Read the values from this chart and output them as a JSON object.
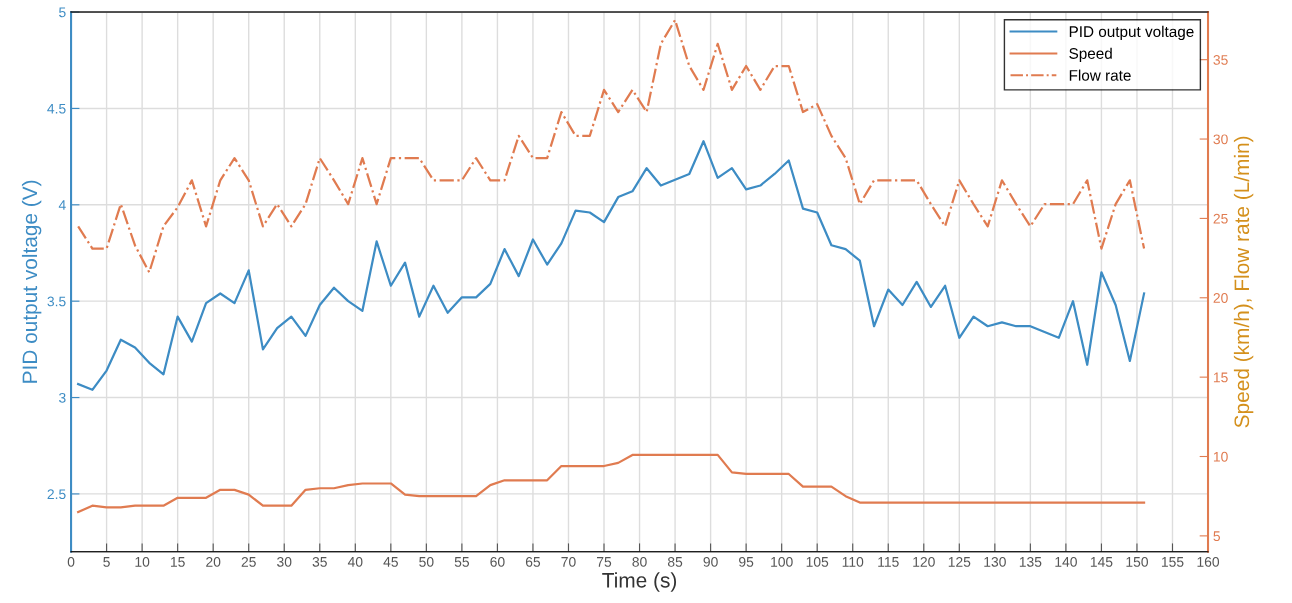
{
  "chart_data": {
    "type": "line",
    "xlabel": "Time (s)",
    "ylabel": "PID output voltage (V)",
    "y2label": "Speed (km/h), Flow rate (L/min)",
    "x": [
      1,
      3,
      5,
      7,
      9,
      11,
      13,
      15,
      17,
      19,
      21,
      23,
      25,
      27,
      29,
      31,
      33,
      35,
      37,
      39,
      41,
      43,
      45,
      47,
      49,
      51,
      53,
      55,
      57,
      59,
      61,
      63,
      65,
      67,
      69,
      71,
      73,
      75,
      77,
      79,
      81,
      83,
      85,
      87,
      89,
      91,
      93,
      95,
      97,
      99,
      101,
      103,
      105,
      107,
      109,
      111,
      113,
      115,
      117,
      119,
      121,
      123,
      125,
      127,
      129,
      131,
      133,
      135,
      137,
      139,
      141,
      143,
      145,
      147,
      149,
      151
    ],
    "series": [
      {
        "name": "PID output voltage",
        "color": "#3d8cc4",
        "line_style": "solid",
        "values": [
          3.07,
          3.04,
          3.14,
          3.3,
          3.26,
          3.18,
          3.12,
          3.42,
          3.29,
          3.49,
          3.54,
          3.49,
          3.66,
          3.25,
          3.36,
          3.42,
          3.32,
          3.48,
          3.57,
          3.5,
          3.45,
          3.81,
          3.58,
          3.7,
          3.42,
          3.58,
          3.44,
          3.52,
          3.52,
          3.59,
          3.77,
          3.63,
          3.82,
          3.69,
          3.8,
          3.97,
          3.96,
          3.91,
          4.04,
          4.07,
          4.19,
          4.1,
          4.13,
          4.16,
          4.33,
          4.14,
          4.19,
          4.08,
          4.1,
          4.16,
          4.23,
          3.98,
          3.96,
          3.79,
          3.77,
          3.71,
          3.37,
          3.56,
          3.48,
          3.6,
          3.47,
          3.58,
          3.31,
          3.42,
          3.37,
          3.39,
          3.37,
          3.37,
          3.34,
          3.31,
          3.5,
          3.17,
          3.65,
          3.48,
          3.19,
          3.54
        ]
      },
      {
        "name": "Speed",
        "color": "#e07b50",
        "axis": "y2",
        "line_style": "solid",
        "values": [
          6.5,
          6.9,
          6.8,
          6.8,
          6.9,
          6.9,
          6.9,
          7.4,
          7.4,
          7.4,
          7.9,
          7.9,
          7.6,
          6.9,
          6.9,
          6.9,
          7.9,
          8.0,
          8.0,
          8.2,
          8.3,
          8.3,
          8.3,
          7.6,
          7.5,
          7.5,
          7.5,
          7.5,
          7.5,
          8.2,
          8.5,
          8.5,
          8.5,
          8.5,
          9.4,
          9.4,
          9.4,
          9.4,
          9.6,
          10.1,
          10.1,
          10.1,
          10.1,
          10.1,
          10.1,
          10.1,
          9.0,
          8.9,
          8.9,
          8.9,
          8.9,
          8.1,
          8.1,
          8.1,
          7.5,
          7.1,
          7.1,
          7.1,
          7.1,
          7.1,
          7.1,
          7.1,
          7.1,
          7.1,
          7.1,
          7.1,
          7.1,
          7.1,
          7.1,
          7.1,
          7.1,
          7.1,
          7.1,
          7.1,
          7.1,
          7.1
        ]
      },
      {
        "name": "Flow rate",
        "color": "#e07b50",
        "axis": "y2",
        "line_style": "dashdot",
        "values": [
          24.5,
          23.1,
          23.1,
          25.9,
          23.3,
          21.6,
          24.5,
          25.7,
          27.4,
          24.5,
          27.4,
          28.8,
          27.4,
          24.5,
          25.9,
          24.5,
          25.9,
          28.8,
          27.4,
          25.9,
          28.8,
          25.9,
          28.8,
          28.8,
          28.8,
          27.4,
          27.4,
          27.4,
          28.8,
          27.4,
          27.4,
          30.2,
          28.8,
          28.8,
          31.7,
          30.2,
          30.2,
          33.1,
          31.7,
          33.1,
          31.7,
          36.0,
          37.5,
          34.6,
          33.1,
          36.0,
          33.1,
          34.6,
          33.1,
          34.6,
          34.6,
          31.7,
          32.2,
          30.2,
          28.8,
          25.9,
          27.4,
          27.4,
          27.4,
          27.4,
          25.9,
          24.5,
          27.4,
          25.9,
          24.5,
          27.4,
          25.9,
          24.5,
          25.9,
          25.9,
          25.9,
          27.4,
          23.1,
          25.9,
          27.4,
          23.1
        ]
      }
    ],
    "xlim": [
      0,
      160
    ],
    "xticks": [
      0,
      5,
      10,
      15,
      20,
      25,
      30,
      35,
      40,
      45,
      50,
      55,
      60,
      65,
      70,
      75,
      80,
      85,
      90,
      95,
      100,
      105,
      110,
      115,
      120,
      125,
      130,
      135,
      140,
      145,
      150,
      155,
      160
    ],
    "ylim": [
      2.2,
      5
    ],
    "yticks": [
      2.5,
      3,
      3.5,
      4,
      4.5,
      5
    ],
    "y2lim": [
      4,
      38
    ],
    "y2ticks": [
      5,
      10,
      15,
      20,
      25,
      30,
      35
    ],
    "grid": true,
    "legend": "top right"
  }
}
